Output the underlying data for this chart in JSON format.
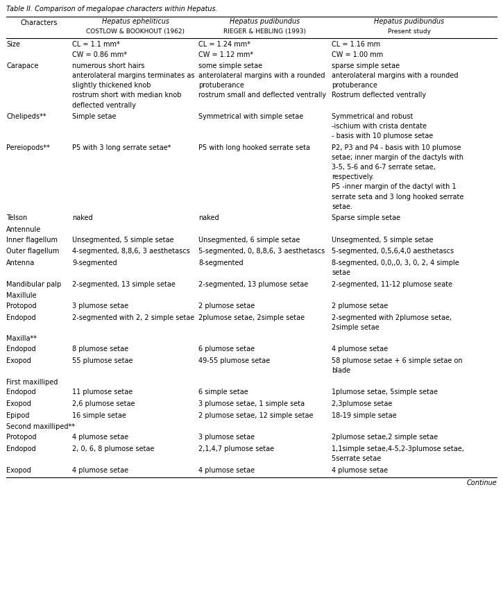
{
  "title": "Table II. Comparison of megalopae characters within Hepatus.",
  "col_headers_line1": [
    "Characters",
    "Hepatus epheliticus",
    "Hepatus pudibundus",
    "Hepatus pudibundus"
  ],
  "col_headers_line2_display": [
    "",
    "COSTLOW & BOOKHOUT (1962)",
    "RIEGER & HEBLING (1993)",
    "Present study"
  ],
  "rows": [
    {
      "character": "Size",
      "sub_rows": [
        [
          "CL = 1.1 mm*",
          "CL = 1.24 mm*",
          "CL = 1.16 mm"
        ],
        [
          "CW = 0.86 mm*",
          "CW = 1.12 mm*",
          "CW = 1.00 mm"
        ]
      ]
    },
    {
      "character": "Carapace",
      "sub_rows": [
        [
          "numerous short hairs",
          "some simple setae",
          "sparse simple setae"
        ],
        [
          "anterolateral margins terminates as\nslightly thickened knob",
          "anterolateral margins with a rounded\nprotuberance",
          "anterolateral margins with a rounded\nprotuberance"
        ],
        [
          "rostrum short with median knob\ndeflected ventrally",
          "rostrum small and deflected ventrally",
          "Rostrum deflected ventrally"
        ]
      ]
    },
    {
      "character": "Chelipeds**",
      "sub_rows": [
        [
          "Simple setae",
          "Symmetrical with simple setae",
          "Symmetrical and robust"
        ],
        [
          "",
          "",
          "-ischium with crista dentate"
        ],
        [
          "",
          "",
          "- basis with 10 plumose setae"
        ]
      ]
    },
    {
      "character": "Pereiopods**",
      "sub_rows": [
        [
          "P5 with 3 long serrate setae*",
          "P5 with long hooked serrate seta",
          "P2, P3 and P4 - basis with 10 plumose\nsetae; inner margin of the dactyls with\n3-5, 5-6 and 6-7 serrate setae,\nrespectively."
        ],
        [
          "",
          "",
          "P5 -inner margin of the dactyl with 1\nserrate seta and 3 long hooked serrate\nsetae."
        ]
      ]
    },
    {
      "character": "Telson",
      "sub_rows": [
        [
          "naked",
          "naked",
          "Sparse simple setae"
        ]
      ]
    },
    {
      "character": "Antennule",
      "sub_rows": []
    },
    {
      "character": "Inner flagellum",
      "sub_rows": [
        [
          "Unsegmented, 5 simple setae",
          "Unsegmented, 6 simple setae",
          "Unsegmented, 5 simple setae"
        ]
      ]
    },
    {
      "character": "Outer flagellum",
      "sub_rows": [
        [
          "4-segmented, 8,8,6, 3 aesthetascs",
          "5-segmented, 0, 8,8,6, 3 aesthetascs",
          "5-segmented, 0,5,6,4,0 aesthetascs"
        ]
      ]
    },
    {
      "character": "Antenna",
      "sub_rows": [
        [
          "9-segmented",
          "8-segmented",
          "8-segmented, 0,0,,0, 3, 0, 2, 4 simple\nsetae"
        ]
      ]
    },
    {
      "character": "Mandibular palp",
      "sub_rows": [
        [
          "2-segmented, 13 simple setae",
          "2-segmented, 13 plumose setae",
          "2-segmented, 11-12 plumose seate"
        ]
      ]
    },
    {
      "character": "Maxillule",
      "sub_rows": []
    },
    {
      "character": "Protopod",
      "sub_rows": [
        [
          "3 plumose setae",
          "2 plumose setae",
          "2 plumose setae"
        ]
      ]
    },
    {
      "character": "Endopod",
      "sub_rows": [
        [
          "2-segmented with 2, 2 simple setae",
          "2plumose setae, 2simple setae",
          "2-segmented with 2plumose setae,\n2simple setae"
        ]
      ]
    },
    {
      "character": "Maxilla**",
      "sub_rows": []
    },
    {
      "character": "Endopod",
      "sub_rows": [
        [
          "8 plumose setae",
          "6 plumose setae",
          "4 plumose setae"
        ]
      ]
    },
    {
      "character": "Exopod",
      "sub_rows": [
        [
          "55 plumose setae",
          "49-55 plumose setae",
          "58 plumose setae + 6 simple setae on\nblade"
        ]
      ]
    },
    {
      "character": "First maxilliped",
      "sub_rows": []
    },
    {
      "character": "Endopod",
      "sub_rows": [
        [
          "11 plumose setae",
          "6 simple setae",
          "1plumose setae, 5simple setae"
        ]
      ]
    },
    {
      "character": "Exopod",
      "sub_rows": [
        [
          "2,6 plumose setae",
          "3 plumose setae, 1 simple seta",
          "2,3plumose setae"
        ]
      ]
    },
    {
      "character": "Epipod",
      "sub_rows": [
        [
          "16 simple setae",
          "2 plumose setae, 12 simple setae",
          "18-19 simple setae"
        ]
      ]
    },
    {
      "character": "Second maxilliped**",
      "sub_rows": []
    },
    {
      "character": "Protopod",
      "sub_rows": [
        [
          "4 plumose setae",
          "3 plumose setae",
          "2plumose setae,2 simple setae"
        ]
      ]
    },
    {
      "character": "Endopod",
      "sub_rows": [
        [
          "2, 0, 6, 8 plumose setae",
          "2,1,4,7 plumose setae",
          "1,1simple setae,4-5,2-3plumose setae,\n5serrate setae"
        ]
      ]
    },
    {
      "character": "Exopod",
      "sub_rows": [
        [
          "4 plumose setae",
          "4 plumose setae",
          "4 plumose setae"
        ]
      ]
    }
  ],
  "continue_text": "Continue",
  "background_color": "#ffffff",
  "text_color": "#000000",
  "font_size": 7.0,
  "title_font_size": 7.0
}
